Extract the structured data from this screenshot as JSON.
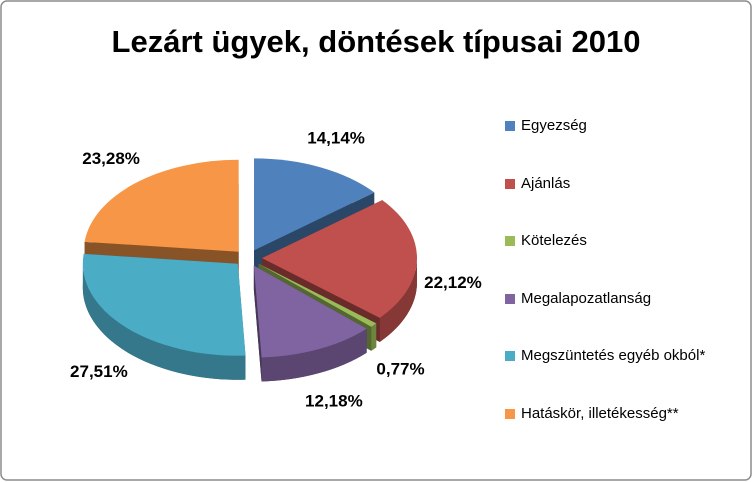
{
  "chart_data": {
    "type": "pie3d",
    "title": "Lezárt ügyek, döntések típusai 2010",
    "categories": [
      "Egyezség",
      "Ajánlás",
      "Kötelezés",
      "Megalapozatlanság",
      "Megszüntetés egyéb okból*",
      "Hatáskör, illetékesség**"
    ],
    "values": [
      14.14,
      22.12,
      0.77,
      12.18,
      27.51,
      23.28
    ],
    "value_labels": [
      "14,14%",
      "22,12%",
      "0,77%",
      "12,18%",
      "27,51%",
      "23,28%"
    ],
    "colors": [
      "#4f81bd",
      "#c0504d",
      "#9bbb59",
      "#8064a2",
      "#4bacc6",
      "#f79646"
    ],
    "legend": "right"
  }
}
